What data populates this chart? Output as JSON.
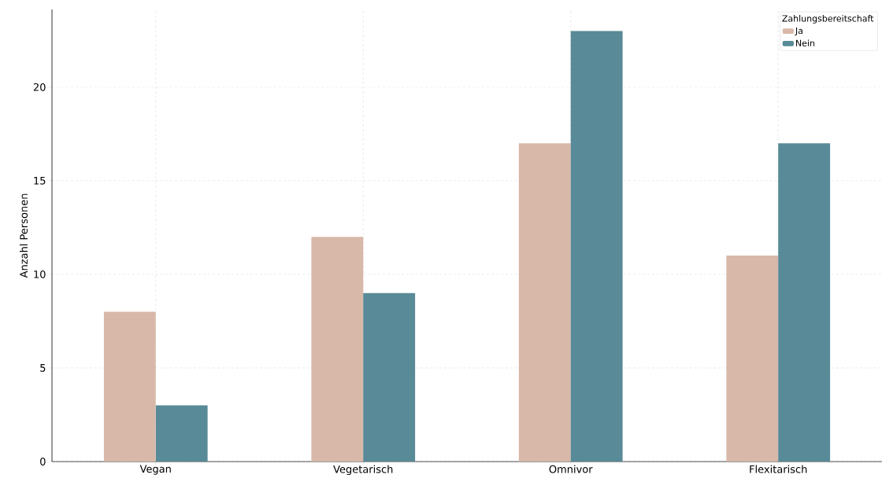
{
  "chart_data": {
    "type": "bar",
    "ylabel": "Anzahl Personen",
    "legend_title": "Zahlungsbereitschaft",
    "categories": [
      "Vegan",
      "Vegetarisch",
      "Omnivor",
      "Flexitarisch"
    ],
    "series": [
      {
        "name": "Ja",
        "color": "#d8b8a8",
        "values": [
          8,
          12,
          17,
          11
        ]
      },
      {
        "name": "Nein",
        "color": "#588a97",
        "values": [
          3,
          9,
          23,
          17
        ]
      }
    ],
    "ylim": [
      0,
      24.15
    ],
    "yticks": [
      0,
      5,
      10,
      15,
      20
    ],
    "grid": true,
    "legend": "top right"
  }
}
